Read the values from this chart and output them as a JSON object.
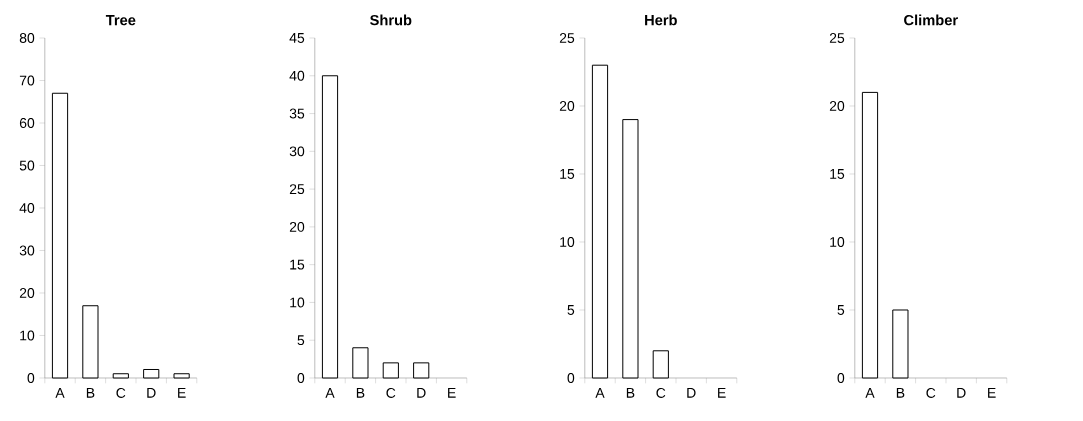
{
  "chart_data": [
    {
      "type": "bar",
      "title": "Tree",
      "categories": [
        "A",
        "B",
        "C",
        "D",
        "E"
      ],
      "values": [
        67,
        17,
        1,
        2,
        1
      ],
      "color": "#ffffff",
      "ylim": [
        0,
        80
      ],
      "yticks": [
        0,
        10,
        20,
        30,
        40,
        50,
        60,
        70,
        80
      ]
    },
    {
      "type": "bar",
      "title": "Shrub",
      "categories": [
        "A",
        "B",
        "C",
        "D",
        "E"
      ],
      "values": [
        40,
        4,
        2,
        2,
        0
      ],
      "color": "#ffffff",
      "ylim": [
        0,
        45
      ],
      "yticks": [
        0,
        5,
        10,
        15,
        20,
        25,
        30,
        35,
        40,
        45
      ]
    },
    {
      "type": "bar",
      "title": "Herb",
      "categories": [
        "A",
        "B",
        "C",
        "D",
        "E"
      ],
      "values": [
        23,
        19,
        2,
        0,
        0
      ],
      "color": "#ffffff",
      "ylim": [
        0,
        25
      ],
      "yticks": [
        0,
        5,
        10,
        15,
        20,
        25
      ]
    },
    {
      "type": "bar",
      "title": "Climber",
      "categories": [
        "A",
        "B",
        "C",
        "D",
        "E"
      ],
      "values": [
        21,
        5,
        0,
        0,
        0
      ],
      "color": "#ffffff",
      "ylim": [
        0,
        25
      ],
      "yticks": [
        0,
        5,
        10,
        15,
        20,
        25
      ]
    }
  ]
}
